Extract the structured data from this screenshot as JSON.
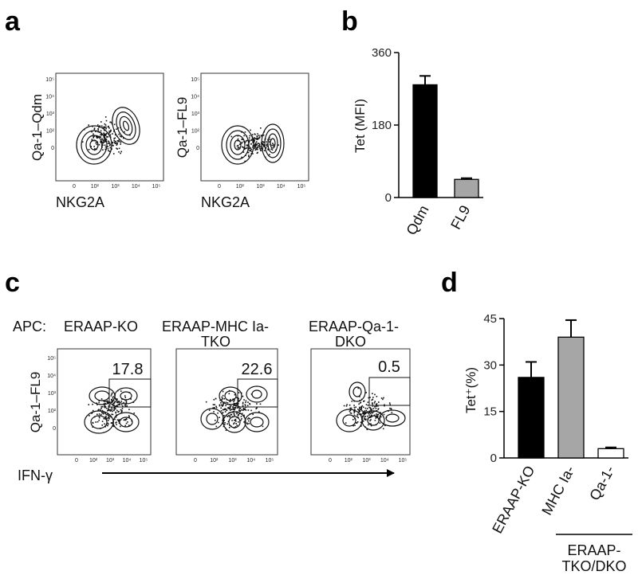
{
  "panels": {
    "a": {
      "letter": "a",
      "plots": [
        {
          "ylabel": "Qa-1–Qdm",
          "xlabel": "NKG2A"
        },
        {
          "ylabel": "Qa-1–FL9",
          "xlabel": "NKG2A"
        }
      ],
      "y_ticks": [
        "10⁵",
        "10⁴",
        "10³",
        "10²",
        "0"
      ],
      "x_ticks": [
        "0",
        "10²",
        "10³",
        "10⁴",
        "10⁵"
      ]
    },
    "b": {
      "letter": "b"
    },
    "c": {
      "letter": "c",
      "apc_label": "APC:",
      "plots": [
        {
          "title_lines": [
            "ERAAP-KO"
          ],
          "gate_value": "17.8"
        },
        {
          "title_lines": [
            "ERAAP-MHC Ia-",
            "TKO"
          ],
          "gate_value": "22.6"
        },
        {
          "title_lines": [
            "ERAAP-Qa-1-",
            "DKO"
          ],
          "gate_value": "0.5"
        }
      ],
      "ylabel": "Qa-1–FL9",
      "xlabel": "IFN-γ",
      "y_ticks": [
        "10⁵",
        "10⁴",
        "10³",
        "10²",
        "0"
      ],
      "x_ticks": [
        "0",
        "10²",
        "10³",
        "10⁴",
        "10⁵"
      ]
    },
    "d": {
      "letter": "d",
      "group_label_lines": [
        "ERAAP-",
        "TKO/DKO"
      ]
    }
  },
  "chart_data": [
    {
      "panel": "b",
      "type": "bar",
      "categories": [
        "Qdm",
        "FL9"
      ],
      "values": [
        280,
        45
      ],
      "errors": [
        22,
        3
      ],
      "colors": [
        "#000000",
        "#a6a6a6"
      ],
      "ylabel": "Tet (MFI)",
      "ylim": [
        0,
        360
      ],
      "yticks": [
        0,
        180,
        360
      ]
    },
    {
      "panel": "d",
      "type": "bar",
      "categories": [
        "ERAAP-KO",
        "MHC Ia-",
        "Qa-1-"
      ],
      "values": [
        26,
        39,
        3
      ],
      "errors": [
        5,
        5.5,
        0.4
      ],
      "colors": [
        "#000000",
        "#a6a6a6",
        "#ffffff"
      ],
      "ylabel": "Tet⁺(%)",
      "ylim": [
        0,
        45
      ],
      "yticks": [
        0,
        15,
        30,
        45
      ]
    }
  ]
}
